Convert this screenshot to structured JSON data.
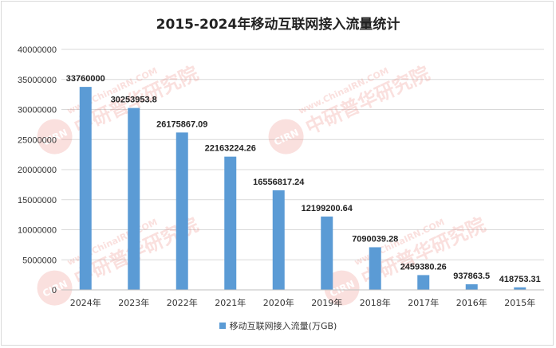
{
  "chart_data": {
    "type": "bar",
    "title": "2015-2024年移动互联网接入流量统计",
    "categories": [
      "2024年",
      "2023年",
      "2022年",
      "2021年",
      "2020年",
      "2019年",
      "2018年",
      "2017年",
      "2016年",
      "2015年"
    ],
    "series": [
      {
        "name": "移动互联网接入流量(万GB)",
        "values": [
          33760000,
          30253953.8,
          26175867.09,
          22163224.26,
          16556817.24,
          12199200.64,
          7090039.28,
          2459380.26,
          937863.5,
          418753.31
        ],
        "labels": [
          "33760000",
          "30253953.8",
          "26175867.09",
          "22163224.26",
          "16556817.24",
          "12199200.64",
          "7090039.28",
          "2459380.26",
          "937863.5",
          "418753.31"
        ],
        "color": "#5b9bd5"
      }
    ],
    "ylim": [
      0,
      40000000
    ],
    "yticks": [
      0,
      5000000,
      10000000,
      15000000,
      20000000,
      25000000,
      30000000,
      35000000,
      40000000
    ],
    "grid": true,
    "legend": "bottom"
  },
  "watermark": {
    "text": "中研普华研究院",
    "url": "www.ChinaIRN.COM",
    "badge": "CIRN"
  }
}
